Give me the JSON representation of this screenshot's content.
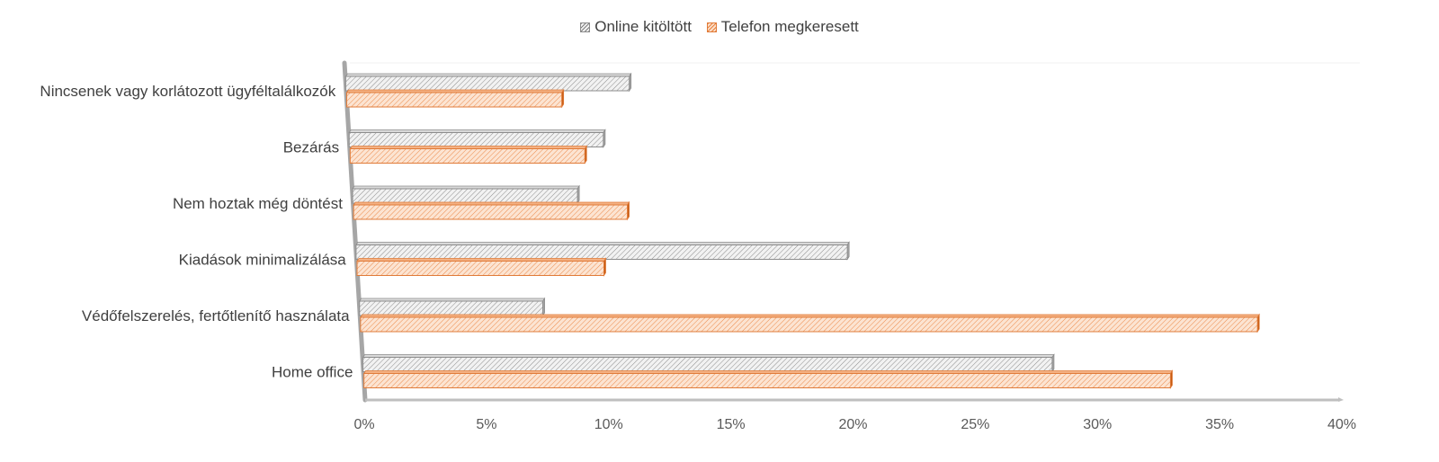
{
  "chart_data": {
    "type": "bar",
    "orientation": "horizontal",
    "style": "3d-clustered",
    "categories": [
      "Nincsenek vagy korlátozott ügyféltalálkozók",
      "Bezárás",
      "Nem hoztak még döntést",
      "Kiadások minimalizálása",
      "Védőfelszerelés, fertőtlenítő  használata",
      "Home office"
    ],
    "series": [
      {
        "name": "Online kitöltött",
        "values": [
          11.6,
          10.4,
          9.2,
          20.1,
          7.5,
          28.2
        ],
        "color": "#bfbfbf"
      },
      {
        "name": "Telefon megkeresett",
        "values": [
          8.8,
          9.6,
          11.2,
          10.1,
          36.7,
          33.0
        ],
        "color": "#ed7d31"
      }
    ],
    "x_ticks": [
      "0%",
      "5%",
      "10%",
      "15%",
      "20%",
      "25%",
      "30%",
      "35%",
      "40%"
    ],
    "xlim": [
      0,
      40
    ],
    "legend_position": "top",
    "grid": false
  },
  "legend": {
    "online_label": "Online kitöltött",
    "telefon_label": "Telefon megkeresett"
  }
}
